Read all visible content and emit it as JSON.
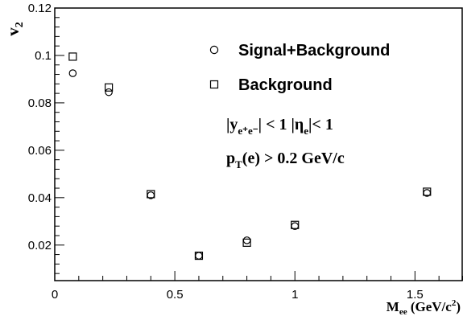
{
  "chart_data": {
    "type": "scatter",
    "xlim": [
      0,
      1.7
    ],
    "ylim": [
      0.005,
      0.12
    ],
    "x_ticks": [
      0,
      0.5,
      1,
      1.5
    ],
    "x_tick_labels": [
      "0",
      "0.5",
      "1",
      "1.5"
    ],
    "y_ticks": [
      0.02,
      0.04,
      0.06,
      0.08,
      0.1,
      0.12
    ],
    "y_tick_labels": [
      "0.02",
      "0.04",
      "0.06",
      "0.08",
      "0.1",
      "0.12"
    ],
    "xlabel": {
      "main": "M",
      "sub": "ee",
      "unit_open": " (GeV/c",
      "sup": "2",
      "unit_close": ")"
    },
    "ylabel": {
      "main": "v",
      "sub": "2"
    },
    "grid": false,
    "legend_position": "top-right",
    "series": [
      {
        "name": "Signal+Background",
        "marker": "circle",
        "x": [
          0.075,
          0.225,
          0.4,
          0.6,
          0.8,
          1.0,
          1.55
        ],
        "y": [
          0.0925,
          0.0845,
          0.041,
          0.0155,
          0.022,
          0.028,
          0.042
        ]
      },
      {
        "name": "Background",
        "marker": "square",
        "x": [
          0.075,
          0.225,
          0.4,
          0.6,
          0.8,
          1.0,
          1.55
        ],
        "y": [
          0.0995,
          0.0865,
          0.0415,
          0.0155,
          0.021,
          0.0285,
          0.0425
        ]
      }
    ],
    "annotations": [
      {
        "id": "rapidity-cut",
        "parts": [
          "|y",
          "e⁺e⁻",
          "| < 1  |η",
          "e",
          "|< 1"
        ]
      },
      {
        "id": "pt-cut",
        "parts": [
          "p",
          "T",
          "(e) > 0.2 GeV/c"
        ]
      }
    ]
  }
}
